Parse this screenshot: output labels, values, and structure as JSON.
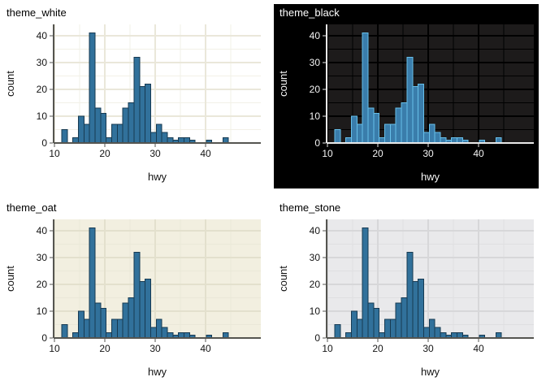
{
  "page": {
    "background": "#ffffff"
  },
  "chart_data": [
    {
      "id": "theme_white",
      "type": "bar",
      "subtype": "histogram",
      "title": "theme_white",
      "xlabel": "hwy",
      "ylabel": "count",
      "x_ticks": [
        10,
        20,
        30,
        40
      ],
      "y_ticks": [
        0,
        10,
        20,
        30,
        40
      ],
      "x_minor": [
        15,
        25,
        35,
        45
      ],
      "y_minor": [
        5,
        15,
        25,
        35
      ],
      "ylim": [
        0,
        44
      ],
      "bin_start": 11.448,
      "bin_width": 1.1034,
      "counts": [
        5,
        0,
        2,
        10,
        7,
        41,
        13,
        11,
        2,
        7,
        7,
        13,
        15,
        32,
        21,
        22,
        4,
        7,
        4,
        2,
        1,
        2,
        2,
        1,
        0,
        0,
        1,
        0,
        0,
        2
      ],
      "theme": {
        "outer_bg": "none",
        "panel": "#ffffff",
        "grid_major": "#eae7da",
        "grid_minor": "#f2f0e7",
        "grid_major_w": 1.6,
        "grid_minor_w": 0.9,
        "axis": "#555550",
        "text": "#131313",
        "title_color": "#000000",
        "bar_fill": "#31719b",
        "bar_stroke": "#173a52"
      }
    },
    {
      "id": "theme_black",
      "type": "bar",
      "subtype": "histogram",
      "title": "theme_black",
      "xlabel": "hwy",
      "ylabel": "count",
      "x_ticks": [
        10,
        20,
        30,
        40
      ],
      "y_ticks": [
        0,
        10,
        20,
        30,
        40
      ],
      "x_minor": [
        15,
        25,
        35,
        45
      ],
      "y_minor": [
        5,
        15,
        25,
        35
      ],
      "ylim": [
        0,
        44
      ],
      "bin_start": 11.448,
      "bin_width": 1.1034,
      "counts": [
        5,
        0,
        2,
        10,
        7,
        41,
        13,
        11,
        2,
        7,
        7,
        13,
        15,
        32,
        21,
        22,
        4,
        7,
        4,
        2,
        1,
        2,
        2,
        1,
        0,
        0,
        1,
        0,
        0,
        2
      ],
      "theme": {
        "outer_bg": "#000000",
        "panel": "#1d1b1b",
        "grid_major": "#000000",
        "grid_minor": "#000000",
        "grid_major_w": 2.2,
        "grid_minor_w": 1.1,
        "axis": "#e8e8e8",
        "text": "#f5f5f5",
        "title_color": "#ffffff",
        "bar_fill": "#3a7dab",
        "bar_stroke": "#67bfe9"
      }
    },
    {
      "id": "theme_oat",
      "type": "bar",
      "subtype": "histogram",
      "title": "theme_oat",
      "xlabel": "hwy",
      "ylabel": "count",
      "x_ticks": [
        10,
        20,
        30,
        40
      ],
      "y_ticks": [
        0,
        10,
        20,
        30,
        40
      ],
      "x_minor": [
        15,
        25,
        35,
        45
      ],
      "y_minor": [
        5,
        15,
        25,
        35
      ],
      "ylim": [
        0,
        44
      ],
      "bin_start": 11.448,
      "bin_width": 1.1034,
      "counts": [
        5,
        0,
        2,
        10,
        7,
        41,
        13,
        11,
        2,
        7,
        7,
        13,
        15,
        32,
        21,
        22,
        4,
        7,
        4,
        2,
        1,
        2,
        2,
        1,
        0,
        0,
        1,
        0,
        0,
        2
      ],
      "theme": {
        "outer_bg": "none",
        "panel": "#f2efe0",
        "grid_major": "#e3e0cd",
        "grid_minor": "#eae8d8",
        "grid_major_w": 1.6,
        "grid_minor_w": 0.9,
        "axis": "#555550",
        "text": "#131313",
        "title_color": "#000000",
        "bar_fill": "#31719b",
        "bar_stroke": "#173a52"
      }
    },
    {
      "id": "theme_stone",
      "type": "bar",
      "subtype": "histogram",
      "title": "theme_stone",
      "xlabel": "hwy",
      "ylabel": "count",
      "x_ticks": [
        10,
        20,
        30,
        40
      ],
      "y_ticks": [
        0,
        10,
        20,
        30,
        40
      ],
      "x_minor": [
        15,
        25,
        35,
        45
      ],
      "y_minor": [
        5,
        15,
        25,
        35
      ],
      "ylim": [
        0,
        44
      ],
      "bin_start": 11.448,
      "bin_width": 1.1034,
      "counts": [
        5,
        0,
        2,
        10,
        7,
        41,
        13,
        11,
        2,
        7,
        7,
        13,
        15,
        32,
        21,
        22,
        4,
        7,
        4,
        2,
        1,
        2,
        2,
        1,
        0,
        0,
        1,
        0,
        0,
        2
      ],
      "theme": {
        "outer_bg": "none",
        "panel": "#e9e9eb",
        "grid_major": "#d7d7d9",
        "grid_minor": "#dfdfe1",
        "grid_major_w": 1.6,
        "grid_minor_w": 0.9,
        "axis": "#555550",
        "text": "#131313",
        "title_color": "#000000",
        "bar_fill": "#31719b",
        "bar_stroke": "#173a52"
      }
    }
  ]
}
